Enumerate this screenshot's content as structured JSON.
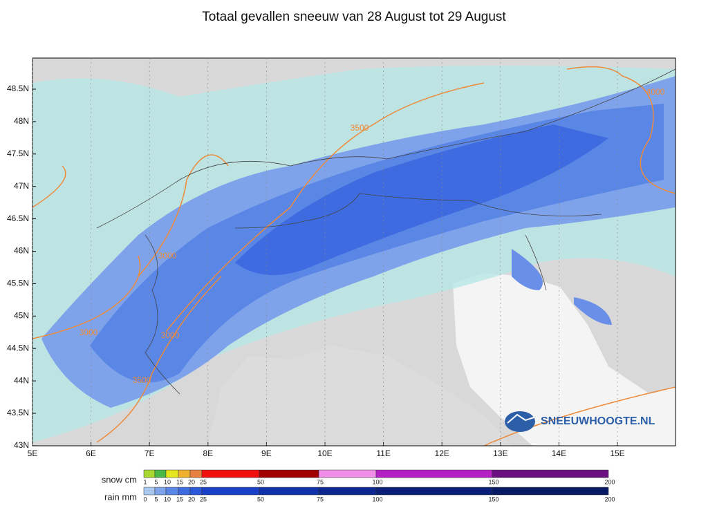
{
  "header": {
    "title": "Totaal gevallen sneeuw van 28 August tot 29 August"
  },
  "map": {
    "lat_labels": [
      "48.5N",
      "48N",
      "47.5N",
      "47N",
      "46.5N",
      "46N",
      "45.5N",
      "45N",
      "44.5N",
      "44N",
      "43.5N",
      "43N"
    ],
    "lon_labels": [
      "5E",
      "6E",
      "7E",
      "8E",
      "9E",
      "10E",
      "11E",
      "12E",
      "13E",
      "14E",
      "15E"
    ],
    "contour_labels": [
      "3500",
      "4000",
      "3000",
      "3000",
      "3000",
      "3500"
    ],
    "logo": "SNEEUWHOOGTE.NL"
  },
  "legend": {
    "snow": {
      "label": "snow cm",
      "ticks": [
        "1",
        "5",
        "10",
        "15",
        "20",
        "25",
        "50",
        "75",
        "100",
        "150",
        "200"
      ]
    },
    "rain": {
      "label": "rain mm",
      "ticks": [
        "0",
        "5",
        "10",
        "15",
        "20",
        "25",
        "50",
        "75",
        "100",
        "150",
        "200"
      ]
    }
  }
}
